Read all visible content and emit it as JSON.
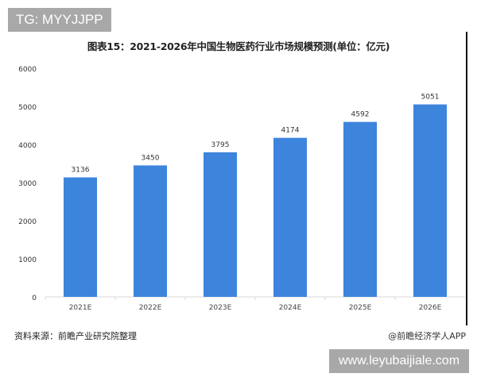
{
  "watermark_tag": "TG: MYYJJPP",
  "watermark_url": "www.leyubaijiale.com",
  "footer": {
    "source": "资料来源：前瞻产业研究院整理",
    "credit": "@前瞻经济学人APP"
  },
  "colors": {
    "bar": "#3d84dc",
    "axis": "#d9d9d9"
  },
  "chart_data": {
    "type": "bar",
    "title": "图表15：2021-2026年中国生物医药行业市场规模预测(单位：亿元)",
    "categories": [
      "2021E",
      "2022E",
      "2023E",
      "2024E",
      "2025E",
      "2026E"
    ],
    "values": [
      3136,
      3450,
      3795,
      4174,
      4592,
      5051
    ],
    "yticks": [
      "0",
      "1000",
      "2000",
      "3000",
      "4000",
      "5000",
      "6000"
    ],
    "ylim": [
      0,
      6000
    ],
    "grid": false,
    "legend": "none"
  }
}
